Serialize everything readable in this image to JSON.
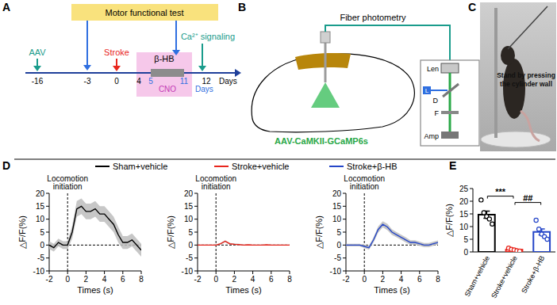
{
  "panel_a": {
    "letter": "A",
    "test": "Motor functional test",
    "injection": "AAV",
    "injury": "Stroke",
    "treatment": "β-HB",
    "drug": "CNO",
    "recording": "Ca²⁺ signaling",
    "days": [
      -16,
      -3,
      0,
      4,
      12
    ],
    "drug_days": [
      5,
      11
    ],
    "unit": "Days"
  },
  "panel_b": {
    "letter": "B",
    "title": "Fiber photometry",
    "virus": "AAV-CaMKII-GCaMP6s",
    "parts": [
      "Len",
      "L",
      "D",
      "F",
      "Amp"
    ]
  },
  "panel_c": {
    "letter": "C",
    "caption_lines": [
      "Stand by pressing",
      "the cylinder wall"
    ]
  },
  "panel_d": {
    "letter": "D"
  },
  "panel_e": {
    "letter": "E"
  },
  "chart_data": [
    {
      "type": "line",
      "x_label": "Times (s)",
      "y_label": "△F/F(%)",
      "x": [
        -2,
        -1.5,
        -1,
        -0.5,
        0,
        0.5,
        1,
        1.5,
        2,
        2.5,
        3,
        3.5,
        4,
        4.5,
        5,
        5.5,
        6,
        6.5,
        7,
        7.5,
        8
      ],
      "series": [
        {
          "name": "Sham+vehicle",
          "color": "#000000",
          "values": [
            0,
            -1,
            1,
            0,
            0,
            5,
            14,
            15,
            13,
            13,
            14,
            12,
            12,
            10,
            8,
            4,
            1,
            1,
            2,
            0,
            -2
          ],
          "error": [
            1.5,
            1.5,
            1.5,
            1.5,
            1.5,
            2.5,
            3,
            3,
            3,
            3,
            3,
            3,
            3,
            3,
            3,
            3,
            2.5,
            2.5,
            2.5,
            2.5,
            2.5
          ]
        }
      ],
      "xlim": [
        -2,
        8
      ],
      "xticks": [
        -2,
        0,
        2,
        4,
        6,
        8
      ],
      "ylim": [
        -10,
        20
      ],
      "yticks": [
        -10,
        -5,
        0,
        5,
        10,
        15,
        20
      ],
      "hline": 0,
      "annotations": [
        {
          "text_lines": [
            "Locomotion",
            "initiation"
          ],
          "x": 0
        }
      ]
    },
    {
      "type": "line",
      "x_label": "Times (s)",
      "y_label": "△F/F(%)",
      "x": [
        -2,
        -1.5,
        -1,
        -0.5,
        0,
        0.5,
        1,
        1.5,
        2,
        2.5,
        3,
        3.5,
        4,
        4.5,
        5,
        5.5,
        6,
        6.5,
        7,
        7.5,
        8
      ],
      "series": [
        {
          "name": "Stroke+vehicle",
          "color": "#e8261d",
          "values": [
            0,
            0,
            0,
            0,
            0,
            0.5,
            1.5,
            0.5,
            0.3,
            0.2,
            0,
            0.1,
            0,
            0,
            0,
            0.1,
            0,
            0,
            0,
            0,
            0
          ],
          "error": [
            0.2,
            0.2,
            0.2,
            0.2,
            0.2,
            0.3,
            0.4,
            0.3,
            0.3,
            0.3,
            0.2,
            0.2,
            0.2,
            0.2,
            0.2,
            0.2,
            0.2,
            0.2,
            0.2,
            0.2,
            0.2
          ]
        }
      ],
      "xlim": [
        -2,
        8
      ],
      "xticks": [
        -2,
        0,
        2,
        4,
        6,
        8
      ],
      "ylim": [
        -10,
        20
      ],
      "yticks": [
        -10,
        -5,
        0,
        5,
        10,
        15,
        20
      ],
      "hline": 0,
      "annotations": [
        {
          "text_lines": [
            "Locomotion",
            "initiation"
          ],
          "x": 0
        }
      ]
    },
    {
      "type": "line",
      "x_label": "Times (s)",
      "y_label": "△F/F(%)",
      "x": [
        -2,
        -1.5,
        -1,
        -0.5,
        0,
        0.5,
        1,
        1.5,
        2,
        2.5,
        3,
        3.5,
        4,
        4.5,
        5,
        5.5,
        6,
        6.5,
        7,
        7.5,
        8
      ],
      "series": [
        {
          "name": "Stroke+β-HB",
          "color": "#2546c8",
          "values": [
            0,
            0,
            0,
            0,
            -0.5,
            -1,
            2,
            6,
            8,
            7,
            5,
            4,
            3,
            2,
            1,
            1,
            0.5,
            0,
            0,
            0.5,
            1
          ],
          "error": [
            0.5,
            0.5,
            0.5,
            0.5,
            0.6,
            0.8,
            1,
            1.2,
            1.2,
            1.2,
            1.1,
            1,
            1,
            1,
            0.9,
            0.9,
            0.8,
            0.8,
            0.8,
            0.8,
            0.8
          ]
        }
      ],
      "xlim": [
        -2,
        8
      ],
      "xticks": [
        -2,
        0,
        2,
        4,
        6,
        8
      ],
      "ylim": [
        -10,
        20
      ],
      "yticks": [
        -10,
        -5,
        0,
        5,
        10,
        15,
        20
      ],
      "hline": 0,
      "annotations": [
        {
          "text_lines": [
            "Locomotion",
            "initiation"
          ],
          "x": 0
        }
      ]
    },
    {
      "type": "bar",
      "y_label": "△F/F(%)",
      "categories": [
        "Sham+vehicle",
        "Stroke+vehicle",
        "Stroke+β-HB"
      ],
      "values": [
        14.7,
        0.9,
        7.9
      ],
      "error": [
        1.4,
        0.3,
        1.2
      ],
      "colors": [
        "#000000",
        "#e8261d",
        "#2546c8"
      ],
      "points": [
        [
          20.5,
          15.5,
          14,
          13,
          11
        ],
        [
          1.5,
          1,
          0.8,
          0.5,
          0.3
        ],
        [
          12.5,
          9,
          7,
          6,
          5
        ]
      ],
      "ylim": [
        0,
        25
      ],
      "yticks": [
        0,
        5,
        10,
        15,
        20,
        25
      ],
      "annotations": [
        {
          "text": "***",
          "between": [
            0,
            1
          ],
          "y": 22
        },
        {
          "text": "##",
          "between": [
            1,
            2
          ],
          "y": 19.5
        }
      ]
    }
  ]
}
